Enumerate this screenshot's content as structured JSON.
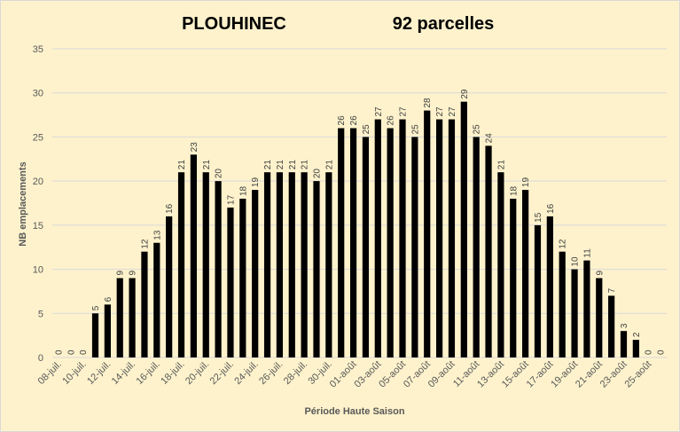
{
  "chart_data": {
    "type": "bar",
    "title": "PLOUHINEC",
    "subtitle": "92 parcelles",
    "xlabel": "Période Haute Saison",
    "ylabel": "NB emplacements",
    "ylim": [
      0,
      35
    ],
    "yticks": [
      0,
      5,
      10,
      15,
      20,
      25,
      30,
      35
    ],
    "grid": true,
    "legend": "none",
    "bar_color": "#000000",
    "gridline_color": "#d9d9d9",
    "background_color": "#fdf2cc",
    "categories": [
      "08-juil.",
      "09-juil.",
      "10-juil.",
      "11-juil.",
      "12-juil.",
      "13-juil.",
      "14-juil.",
      "15-juil.",
      "16-juil.",
      "17-juil.",
      "18-juil.",
      "19-juil.",
      "20-juil.",
      "21-juil.",
      "22-juil.",
      "23-juil.",
      "24-juil.",
      "25-juil.",
      "26-juil.",
      "27-juil.",
      "28-juil.",
      "29-juil.",
      "30-juil.",
      "31-juil.",
      "01-août",
      "02-août",
      "03-août",
      "04-août",
      "05-août",
      "06-août",
      "07-août",
      "08-août",
      "09-août",
      "10-août",
      "11-août",
      "12-août",
      "13-août",
      "14-août",
      "15-août",
      "16-août",
      "17-août",
      "18-août",
      "19-août",
      "20-août",
      "21-août",
      "22-août",
      "23-août",
      "24-août",
      "25-août",
      "26-août"
    ],
    "values": [
      0,
      0,
      0,
      5,
      6,
      9,
      9,
      12,
      13,
      16,
      21,
      23,
      21,
      20,
      17,
      18,
      19,
      21,
      21,
      21,
      21,
      20,
      21,
      26,
      26,
      25,
      27,
      26,
      27,
      25,
      28,
      27,
      27,
      29,
      25,
      24,
      21,
      18,
      19,
      15,
      16,
      12,
      10,
      11,
      9,
      7,
      3,
      2,
      0,
      0
    ],
    "shown_tick_labels": [
      "08-juil.",
      "10-juil.",
      "12-juil.",
      "14-juil.",
      "16-juil.",
      "18-juil.",
      "20-juil.",
      "22-juil.",
      "24-juil.",
      "26-juil.",
      "28-juil.",
      "30-juil.",
      "01-août",
      "03-août",
      "05-août",
      "07-août",
      "09-août",
      "11-août",
      "13-août",
      "15-août",
      "17-août",
      "19-août",
      "21-août",
      "23-août",
      "25-août"
    ]
  }
}
